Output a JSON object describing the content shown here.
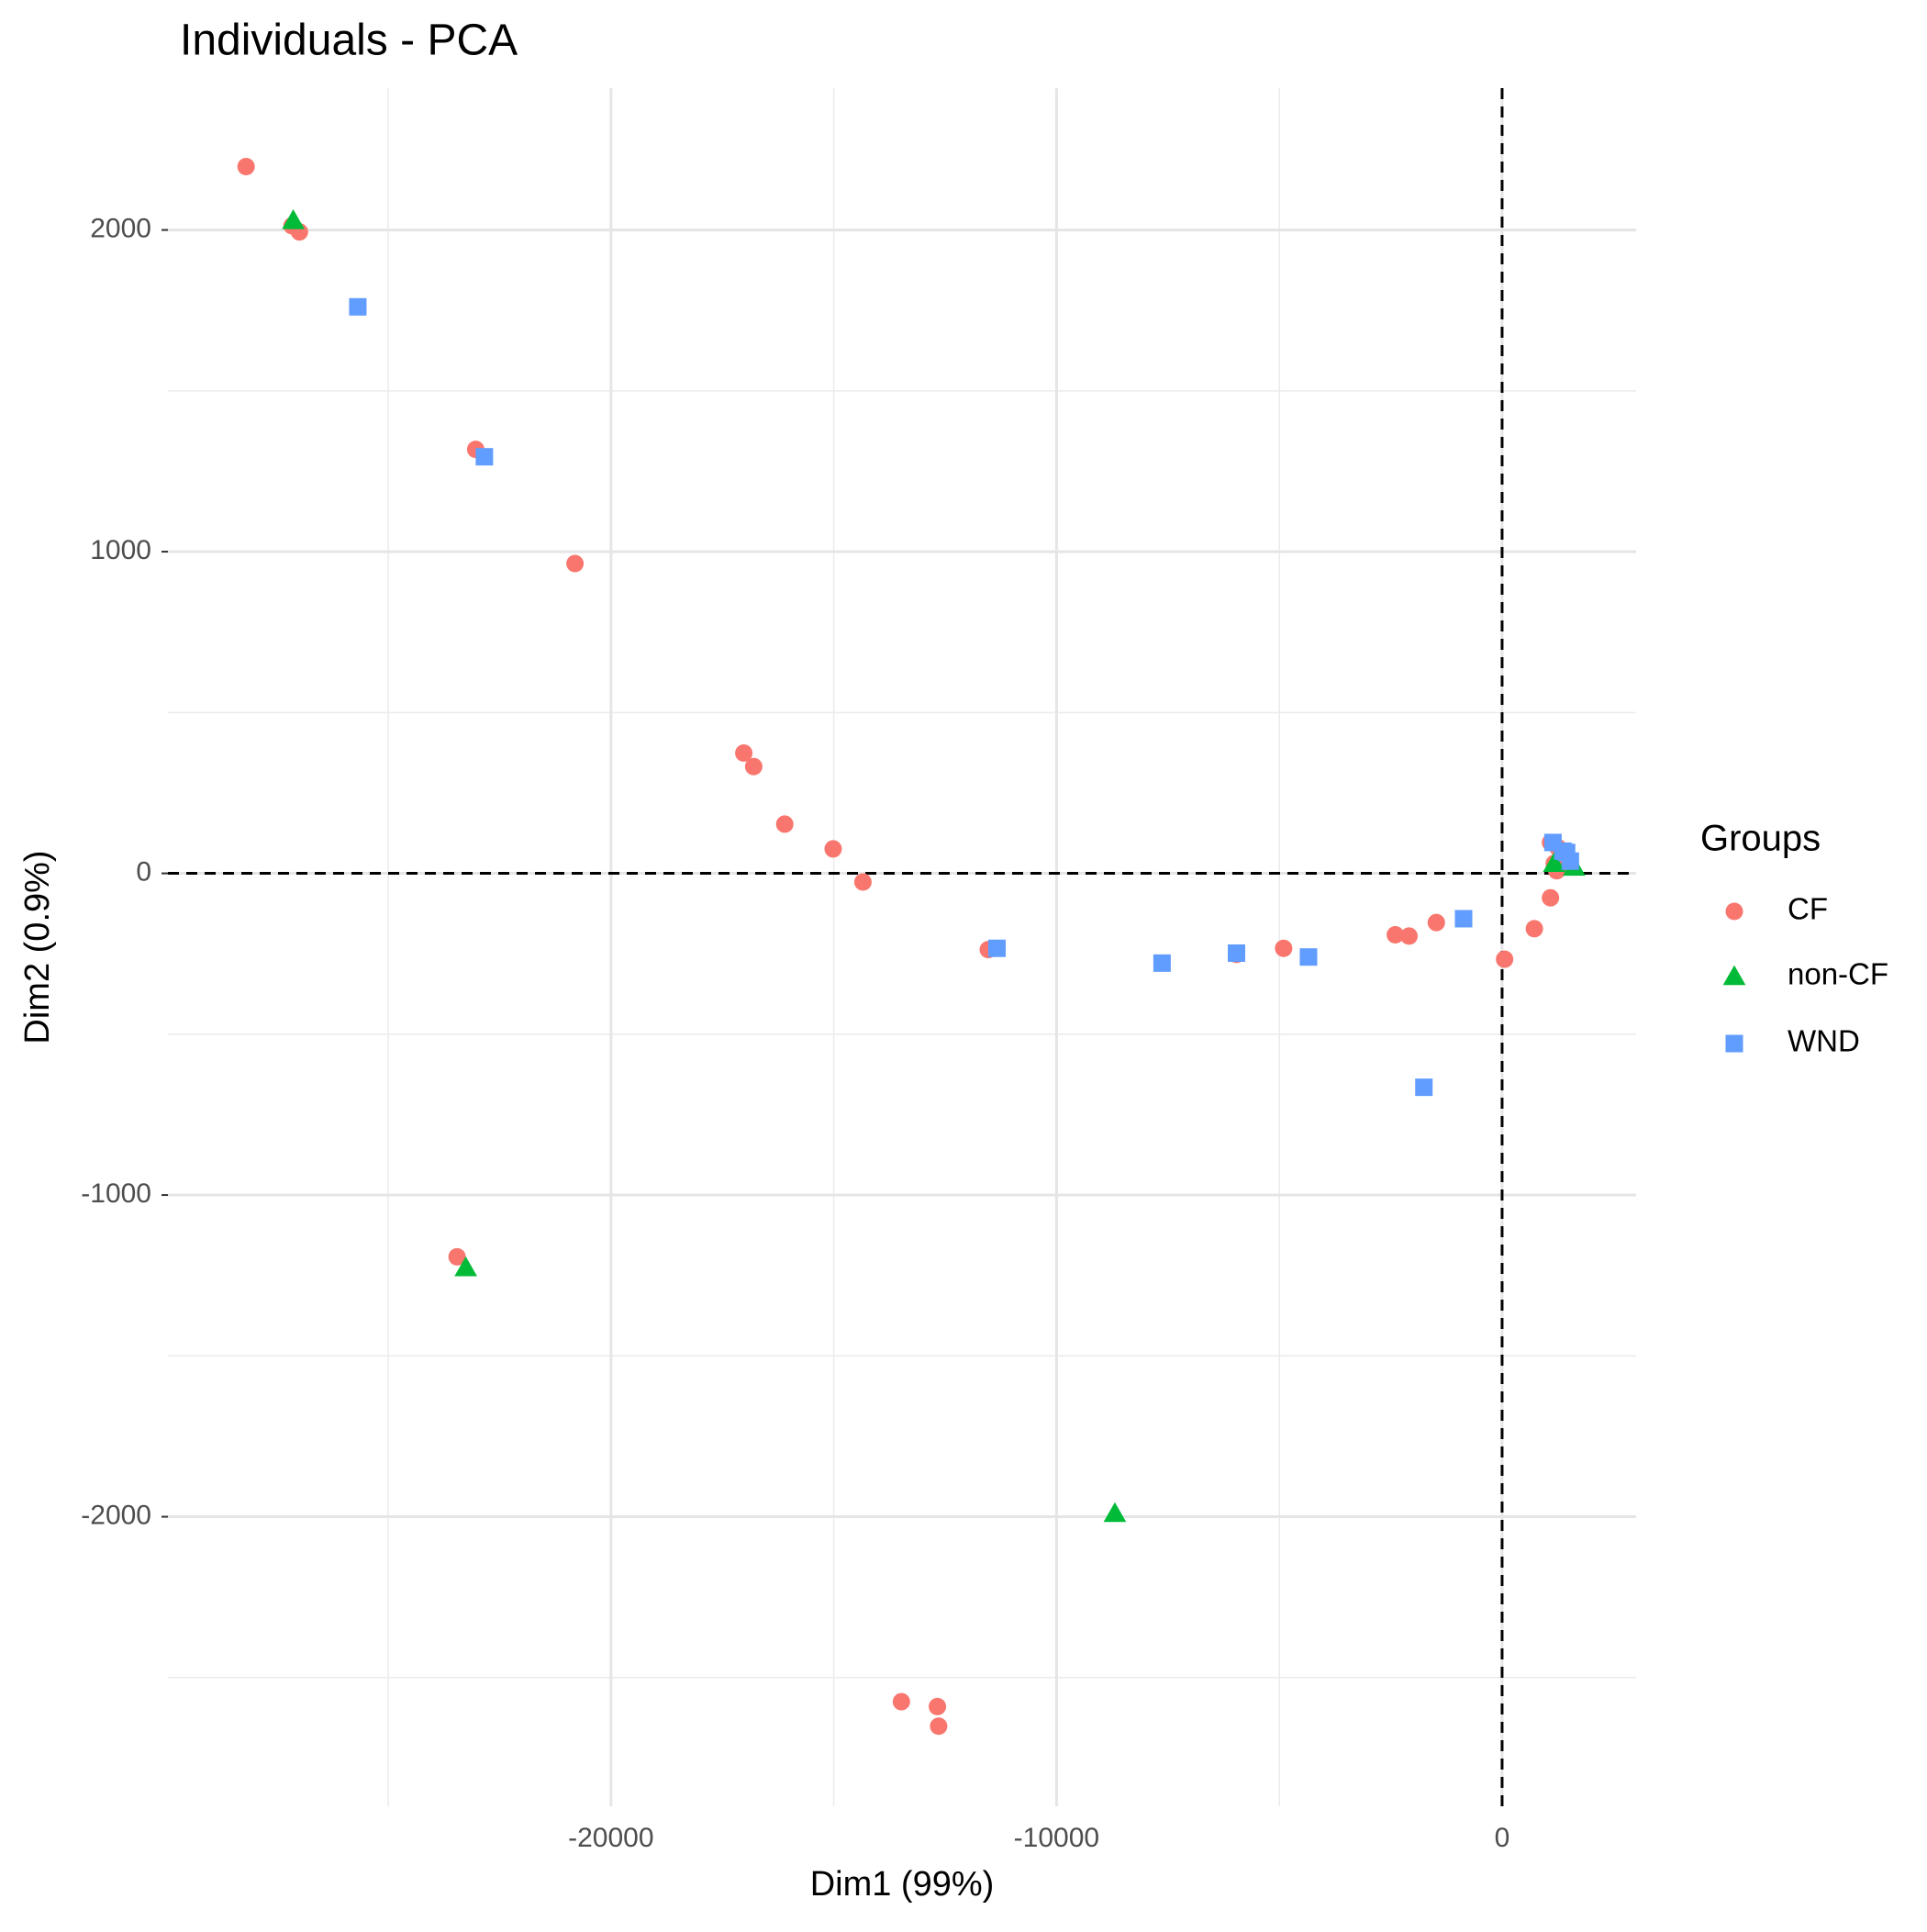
{
  "chart_data": {
    "type": "scatter",
    "title": "Individuals - PCA",
    "x_label": "Dim1 (99%)",
    "y_label": "Dim2 (0.9%)",
    "legend_title": "Groups",
    "legend_position": "right",
    "xlim": [
      -29944,
      3008
    ],
    "ylim": [
      -2900,
      2441
    ],
    "xticks": [
      -20000,
      -10000,
      0
    ],
    "yticks": [
      -2000,
      -1000,
      0,
      1000,
      2000
    ],
    "grid": true,
    "zero_lines": true,
    "series": [
      {
        "name": "CF",
        "color": "#F8766D",
        "shape": "circle",
        "x": [
          -28190,
          -27159,
          -26992,
          -23036,
          -20808,
          -17019,
          -16797,
          -16100,
          -15014,
          -14345,
          -11532,
          -5961,
          -4903,
          -2396,
          -2089,
          -1476,
          56,
          724,
          1086,
          1086,
          1253,
          1170,
          1448,
          1226,
          1532,
          -23454,
          -13482,
          -12674,
          -12646
        ],
        "y": [
          2197,
          2013,
          1994,
          1318,
          963,
          374,
          332,
          153,
          76,
          -27,
          -237,
          -252,
          -233,
          -191,
          -195,
          -153,
          -267,
          -172,
          -76,
          96,
          80,
          31,
          42,
          8,
          31,
          -1192,
          -2575,
          -2590,
          -2651
        ]
      },
      {
        "name": "non-CF",
        "color": "#00BA38",
        "shape": "triangle",
        "x": [
          -27131,
          -23259,
          -8691,
          1616,
          1170
        ],
        "y": [
          2029,
          -1226,
          -1990,
          19,
          31
        ]
      },
      {
        "name": "WND",
        "color": "#619CFF",
        "shape": "square",
        "x": [
          -25682,
          -22841,
          -11337,
          -7632,
          -5961,
          -4345,
          -1755,
          -864,
          1142,
          1365,
          1448,
          1532
        ],
        "y": [
          1761,
          1295,
          -233,
          -279,
          -248,
          -260,
          -665,
          -141,
          96,
          69,
          65,
          38
        ]
      }
    ]
  }
}
